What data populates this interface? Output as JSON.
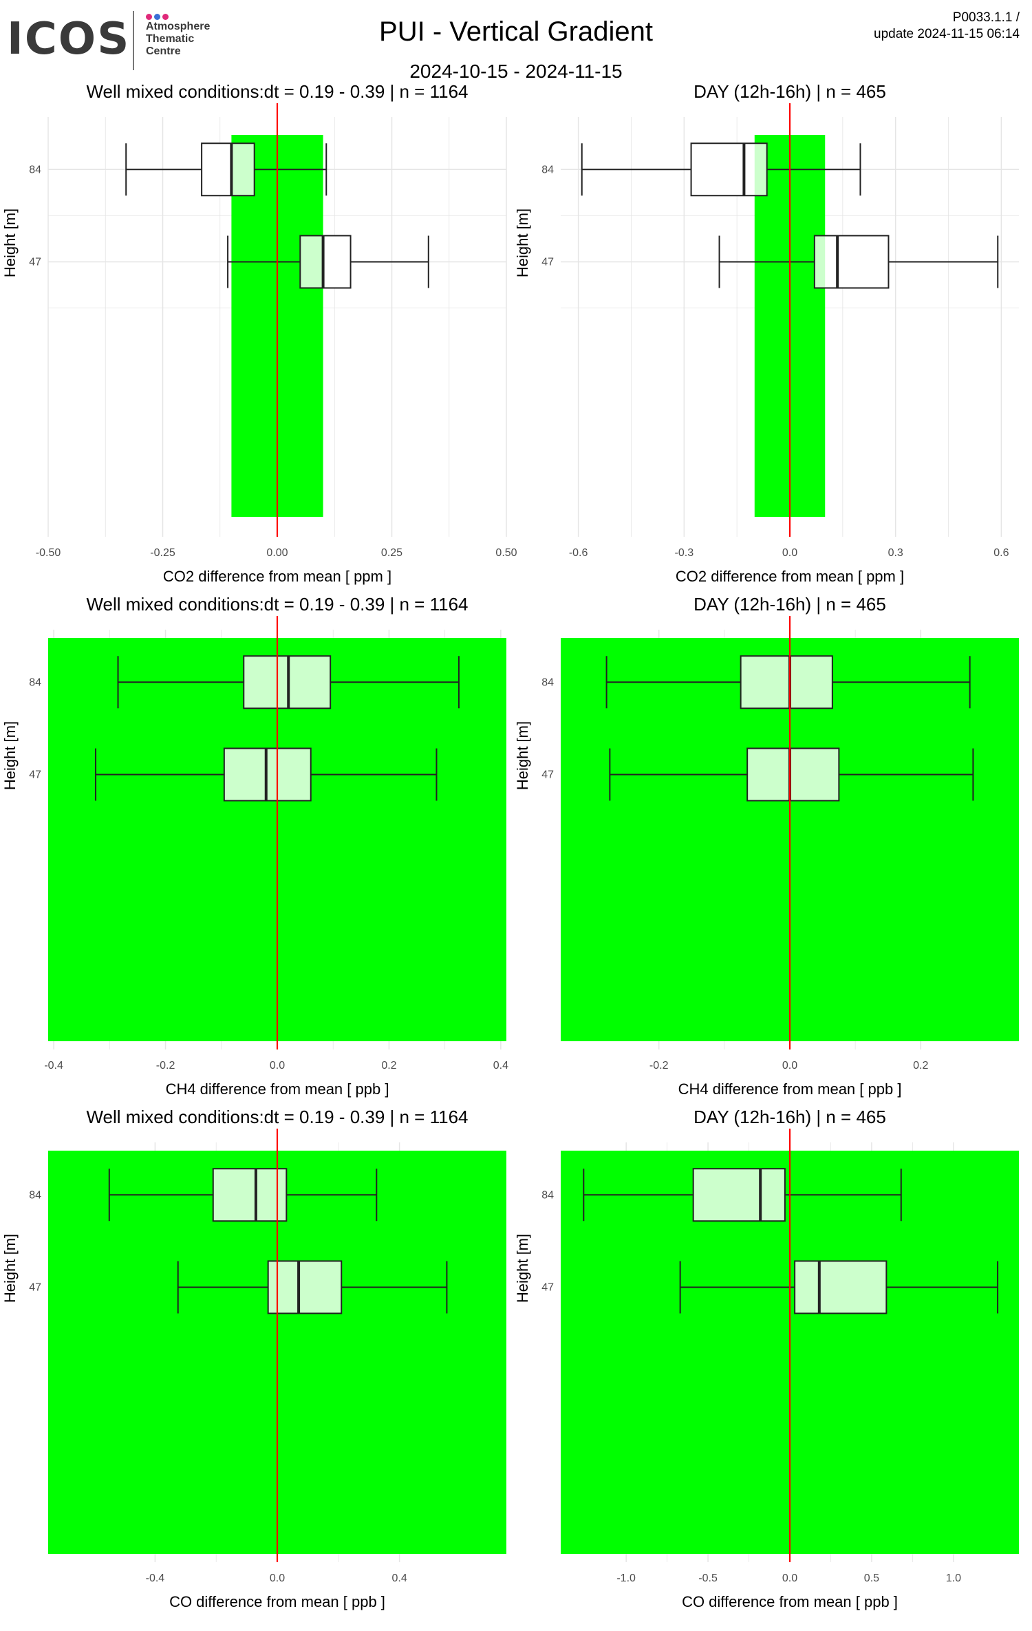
{
  "logo": {
    "text": "ICOS",
    "subtitle": [
      "Atmosphere",
      "Thematic",
      "Centre"
    ]
  },
  "header": {
    "title": "PUI - Vertical Gradient",
    "date_range": "2024-10-15 - 2024-11-15",
    "product_line1": "P0033.1.1 /",
    "product_line2": "update  2024-11-15 06:14"
  },
  "colors": {
    "band": "#00ff00",
    "box_fill": "#ccffcc",
    "box_fill_white": "#ffffff",
    "zero_line": "#ff0000",
    "grid": "#e5e5e5"
  },
  "chart_data": [
    {
      "type": "boxplot",
      "title": "Well mixed conditions:dt = 0.19 - 0.39 | n = 1164",
      "xlabel": "CO2  difference from mean [ ppm ]",
      "ylabel": "Height [m]",
      "xlim": [
        -0.5,
        0.5
      ],
      "xticks": [
        -0.5,
        -0.25,
        0,
        0.25,
        0.5
      ],
      "xtick_labels": [
        "-0.50",
        "-0.25",
        "0.00",
        "0.25",
        "0.50"
      ],
      "band": [
        -0.1,
        0.1
      ],
      "full_band": false,
      "heights": [
        "84",
        "47"
      ],
      "boxes": [
        {
          "height": "84",
          "whisker_low": -0.33,
          "q1": -0.165,
          "median": -0.1,
          "q3": -0.05,
          "whisker_high": 0.107
        },
        {
          "height": "47",
          "whisker_low": -0.108,
          "q1": 0.05,
          "median": 0.1,
          "q3": 0.16,
          "whisker_high": 0.33
        }
      ]
    },
    {
      "type": "boxplot",
      "title": "DAY (12h-16h) | n = 465",
      "xlabel": "CO2  difference from mean [ ppm ]",
      "ylabel": "Height [m]",
      "xlim": [
        -0.65,
        0.65
      ],
      "xticks": [
        -0.6,
        -0.3,
        0,
        0.3,
        0.6
      ],
      "xtick_labels": [
        "-0.6",
        "-0.3",
        "0.0",
        "0.3",
        "0.6"
      ],
      "band": [
        -0.1,
        0.1
      ],
      "full_band": false,
      "heights": [
        "84",
        "47"
      ],
      "boxes": [
        {
          "height": "84",
          "whisker_low": -0.59,
          "q1": -0.28,
          "median": -0.13,
          "q3": -0.065,
          "whisker_high": 0.2
        },
        {
          "height": "47",
          "whisker_low": -0.2,
          "q1": 0.07,
          "median": 0.135,
          "q3": 0.28,
          "whisker_high": 0.59
        }
      ]
    },
    {
      "type": "boxplot",
      "title": "Well mixed conditions:dt = 0.19 - 0.39 | n = 1164",
      "xlabel": "CH4  difference from mean [ ppb ]",
      "ylabel": "Height [m]",
      "xlim": [
        -0.41,
        0.41
      ],
      "xticks": [
        -0.4,
        -0.2,
        0,
        0.2,
        0.4
      ],
      "xtick_labels": [
        "-0.4",
        "-0.2",
        "0.0",
        "0.2",
        "0.4"
      ],
      "band": [
        -0.41,
        0.41
      ],
      "full_band": true,
      "heights": [
        "84",
        "47"
      ],
      "boxes": [
        {
          "height": "84",
          "whisker_low": -0.285,
          "q1": -0.06,
          "median": 0.02,
          "q3": 0.095,
          "whisker_high": 0.325
        },
        {
          "height": "47",
          "whisker_low": -0.325,
          "q1": -0.095,
          "median": -0.02,
          "q3": 0.06,
          "whisker_high": 0.285
        }
      ]
    },
    {
      "type": "boxplot",
      "title": "DAY (12h-16h) | n = 465",
      "xlabel": "CH4  difference from mean [ ppb ]",
      "ylabel": "Height [m]",
      "xlim": [
        -0.35,
        0.35
      ],
      "xticks": [
        -0.2,
        0,
        0.2
      ],
      "xtick_labels": [
        "-0.2",
        "0.0",
        "0.2"
      ],
      "band": [
        -0.35,
        0.35
      ],
      "full_band": true,
      "heights": [
        "84",
        "47"
      ],
      "boxes": [
        {
          "height": "84",
          "whisker_low": -0.28,
          "q1": -0.075,
          "median": 0.0,
          "q3": 0.065,
          "whisker_high": 0.275
        },
        {
          "height": "47",
          "whisker_low": -0.275,
          "q1": -0.065,
          "median": 0.0,
          "q3": 0.075,
          "whisker_high": 0.28
        }
      ]
    },
    {
      "type": "boxplot",
      "title": "Well mixed conditions:dt = 0.19 - 0.39 | n = 1164",
      "xlabel": "CO  difference from mean [ ppb ]",
      "ylabel": "Height [m]",
      "xlim": [
        -0.75,
        0.75
      ],
      "xticks": [
        -0.4,
        0,
        0.4
      ],
      "xtick_labels": [
        "-0.4",
        "0.0",
        "0.4"
      ],
      "band": [
        -0.75,
        0.75
      ],
      "full_band": true,
      "heights": [
        "84",
        "47"
      ],
      "boxes": [
        {
          "height": "84",
          "whisker_low": -0.55,
          "q1": -0.21,
          "median": -0.07,
          "q3": 0.03,
          "whisker_high": 0.325
        },
        {
          "height": "47",
          "whisker_low": -0.325,
          "q1": -0.03,
          "median": 0.07,
          "q3": 0.21,
          "whisker_high": 0.555
        }
      ]
    },
    {
      "type": "boxplot",
      "title": "DAY (12h-16h) | n = 465",
      "xlabel": "CO  difference from mean [ ppb ]",
      "ylabel": "Height [m]",
      "xlim": [
        -1.4,
        1.4
      ],
      "xticks": [
        -1.0,
        -0.5,
        0,
        0.5,
        1.0
      ],
      "xtick_labels": [
        "-1.0",
        "-0.5",
        "0.0",
        "0.5",
        "1.0"
      ],
      "band": [
        -1.4,
        1.4
      ],
      "full_band": true,
      "heights": [
        "84",
        "47"
      ],
      "boxes": [
        {
          "height": "84",
          "whisker_low": -1.26,
          "q1": -0.59,
          "median": -0.18,
          "q3": -0.03,
          "whisker_high": 0.68
        },
        {
          "height": "47",
          "whisker_low": -0.67,
          "q1": 0.03,
          "median": 0.18,
          "q3": 0.59,
          "whisker_high": 1.27
        }
      ]
    }
  ]
}
